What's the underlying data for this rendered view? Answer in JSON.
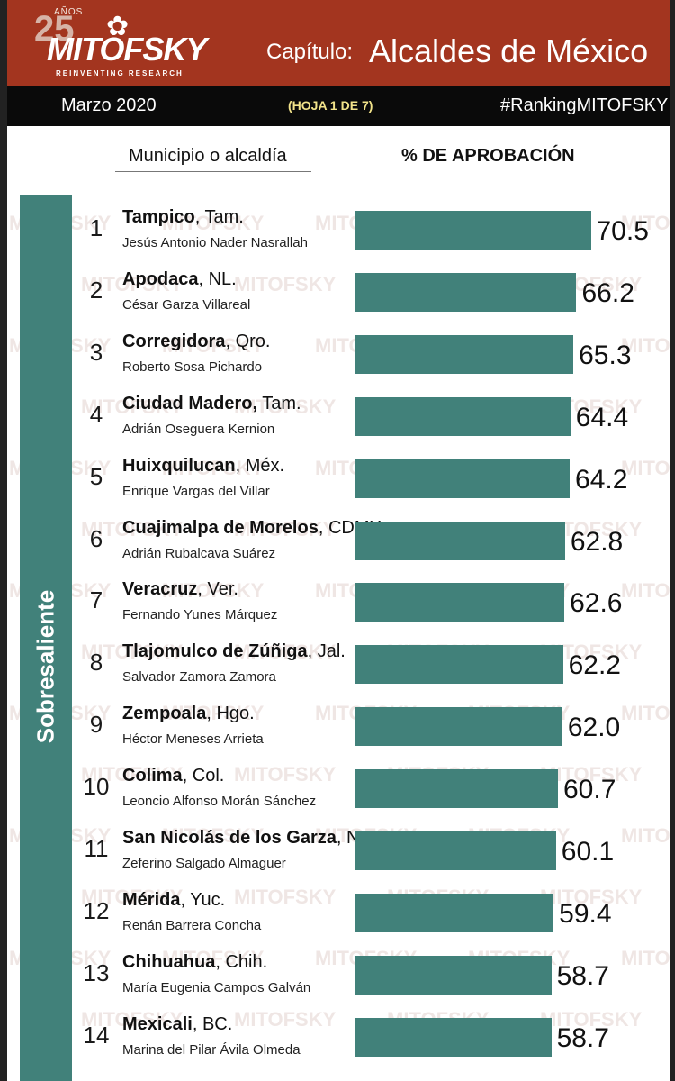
{
  "header": {
    "logo_anos": "AÑOS",
    "logo_num": "25",
    "logo_word": "MITOFSKY",
    "logo_sub": "REINVENTING RESEARCH",
    "chapter_label": "Capítulo:",
    "chapter_title": "Alcaldes de México"
  },
  "subbar": {
    "date": "Marzo 2020",
    "sheet": "(HOJA 1 DE 7)",
    "hashtag": "#RankingMITOFSKY"
  },
  "columns": {
    "municipality": "Municipio o alcaldía",
    "approval": "% DE APROBACIÓN"
  },
  "sidebar_label": "Sobresaliente",
  "colors": {
    "header": "#a3351f",
    "bar": "#41817a",
    "subbar": "#0a0a0a",
    "sheet_text": "#f2e38a"
  },
  "chart_data": {
    "type": "bar",
    "orientation": "horizontal",
    "title": "Alcaldes de México",
    "category_label": "Municipio o alcaldía",
    "value_label": "% DE APROBACIÓN",
    "group": "Sobresaliente",
    "rows": [
      {
        "rank": "1",
        "municipality": "Tampico",
        "state": ", Tam.",
        "mayor": "Jesús Antonio Nader Nasrallah",
        "value": "70.5"
      },
      {
        "rank": "2",
        "municipality": "Apodaca",
        "state": ", NL.",
        "mayor": "César Garza Villareal",
        "value": "66.2"
      },
      {
        "rank": "3",
        "municipality": "Corregidora",
        "state": ", Qro.",
        "mayor": "Roberto Sosa Pichardo",
        "value": "65.3"
      },
      {
        "rank": "4",
        "municipality": "Ciudad Madero,",
        "state": " Tam.",
        "mayor": "Adrián Oseguera Kernion",
        "value": "64.4"
      },
      {
        "rank": "5",
        "municipality": "Huixquilucan",
        "state": ", Méx.",
        "mayor": "Enrique Vargas del Villar",
        "value": "64.2"
      },
      {
        "rank": "6",
        "municipality": "Cuajimalpa de Morelos",
        "state": ", CDMX",
        "mayor": "Adrián Rubalcava Suárez",
        "value": "62.8"
      },
      {
        "rank": "7",
        "municipality": "Veracruz",
        "state": ", Ver.",
        "mayor": "Fernando Yunes Márquez",
        "value": "62.6"
      },
      {
        "rank": "8",
        "municipality": "Tlajomulco de Zúñiga",
        "state": ", Jal.",
        "mayor": "Salvador Zamora Zamora",
        "value": "62.2"
      },
      {
        "rank": "9",
        "municipality": "Zempoala",
        "state": ", Hgo.",
        "mayor": "Héctor Meneses Arrieta",
        "value": "62.0"
      },
      {
        "rank": "10",
        "municipality": "Colima",
        "state": ", Col.",
        "mayor": "Leoncio Alfonso Morán Sánchez",
        "value": "60.7"
      },
      {
        "rank": "11",
        "municipality": "San Nicolás de los Garza",
        "state": ", NL",
        "mayor": "Zeferino Salgado Almaguer",
        "value": "60.1"
      },
      {
        "rank": "12",
        "municipality": "Mérida",
        "state": ", Yuc.",
        "mayor": "Renán Barrera Concha",
        "value": "59.4"
      },
      {
        "rank": "13",
        "municipality": "Chihuahua",
        "state": ", Chih.",
        "mayor": "María Eugenia Campos Galván",
        "value": "58.7"
      },
      {
        "rank": "14",
        "municipality": "Mexicali",
        "state": ", BC.",
        "mayor": "Marina del Pilar Ávila Olmeda",
        "value": "58.7"
      }
    ]
  }
}
